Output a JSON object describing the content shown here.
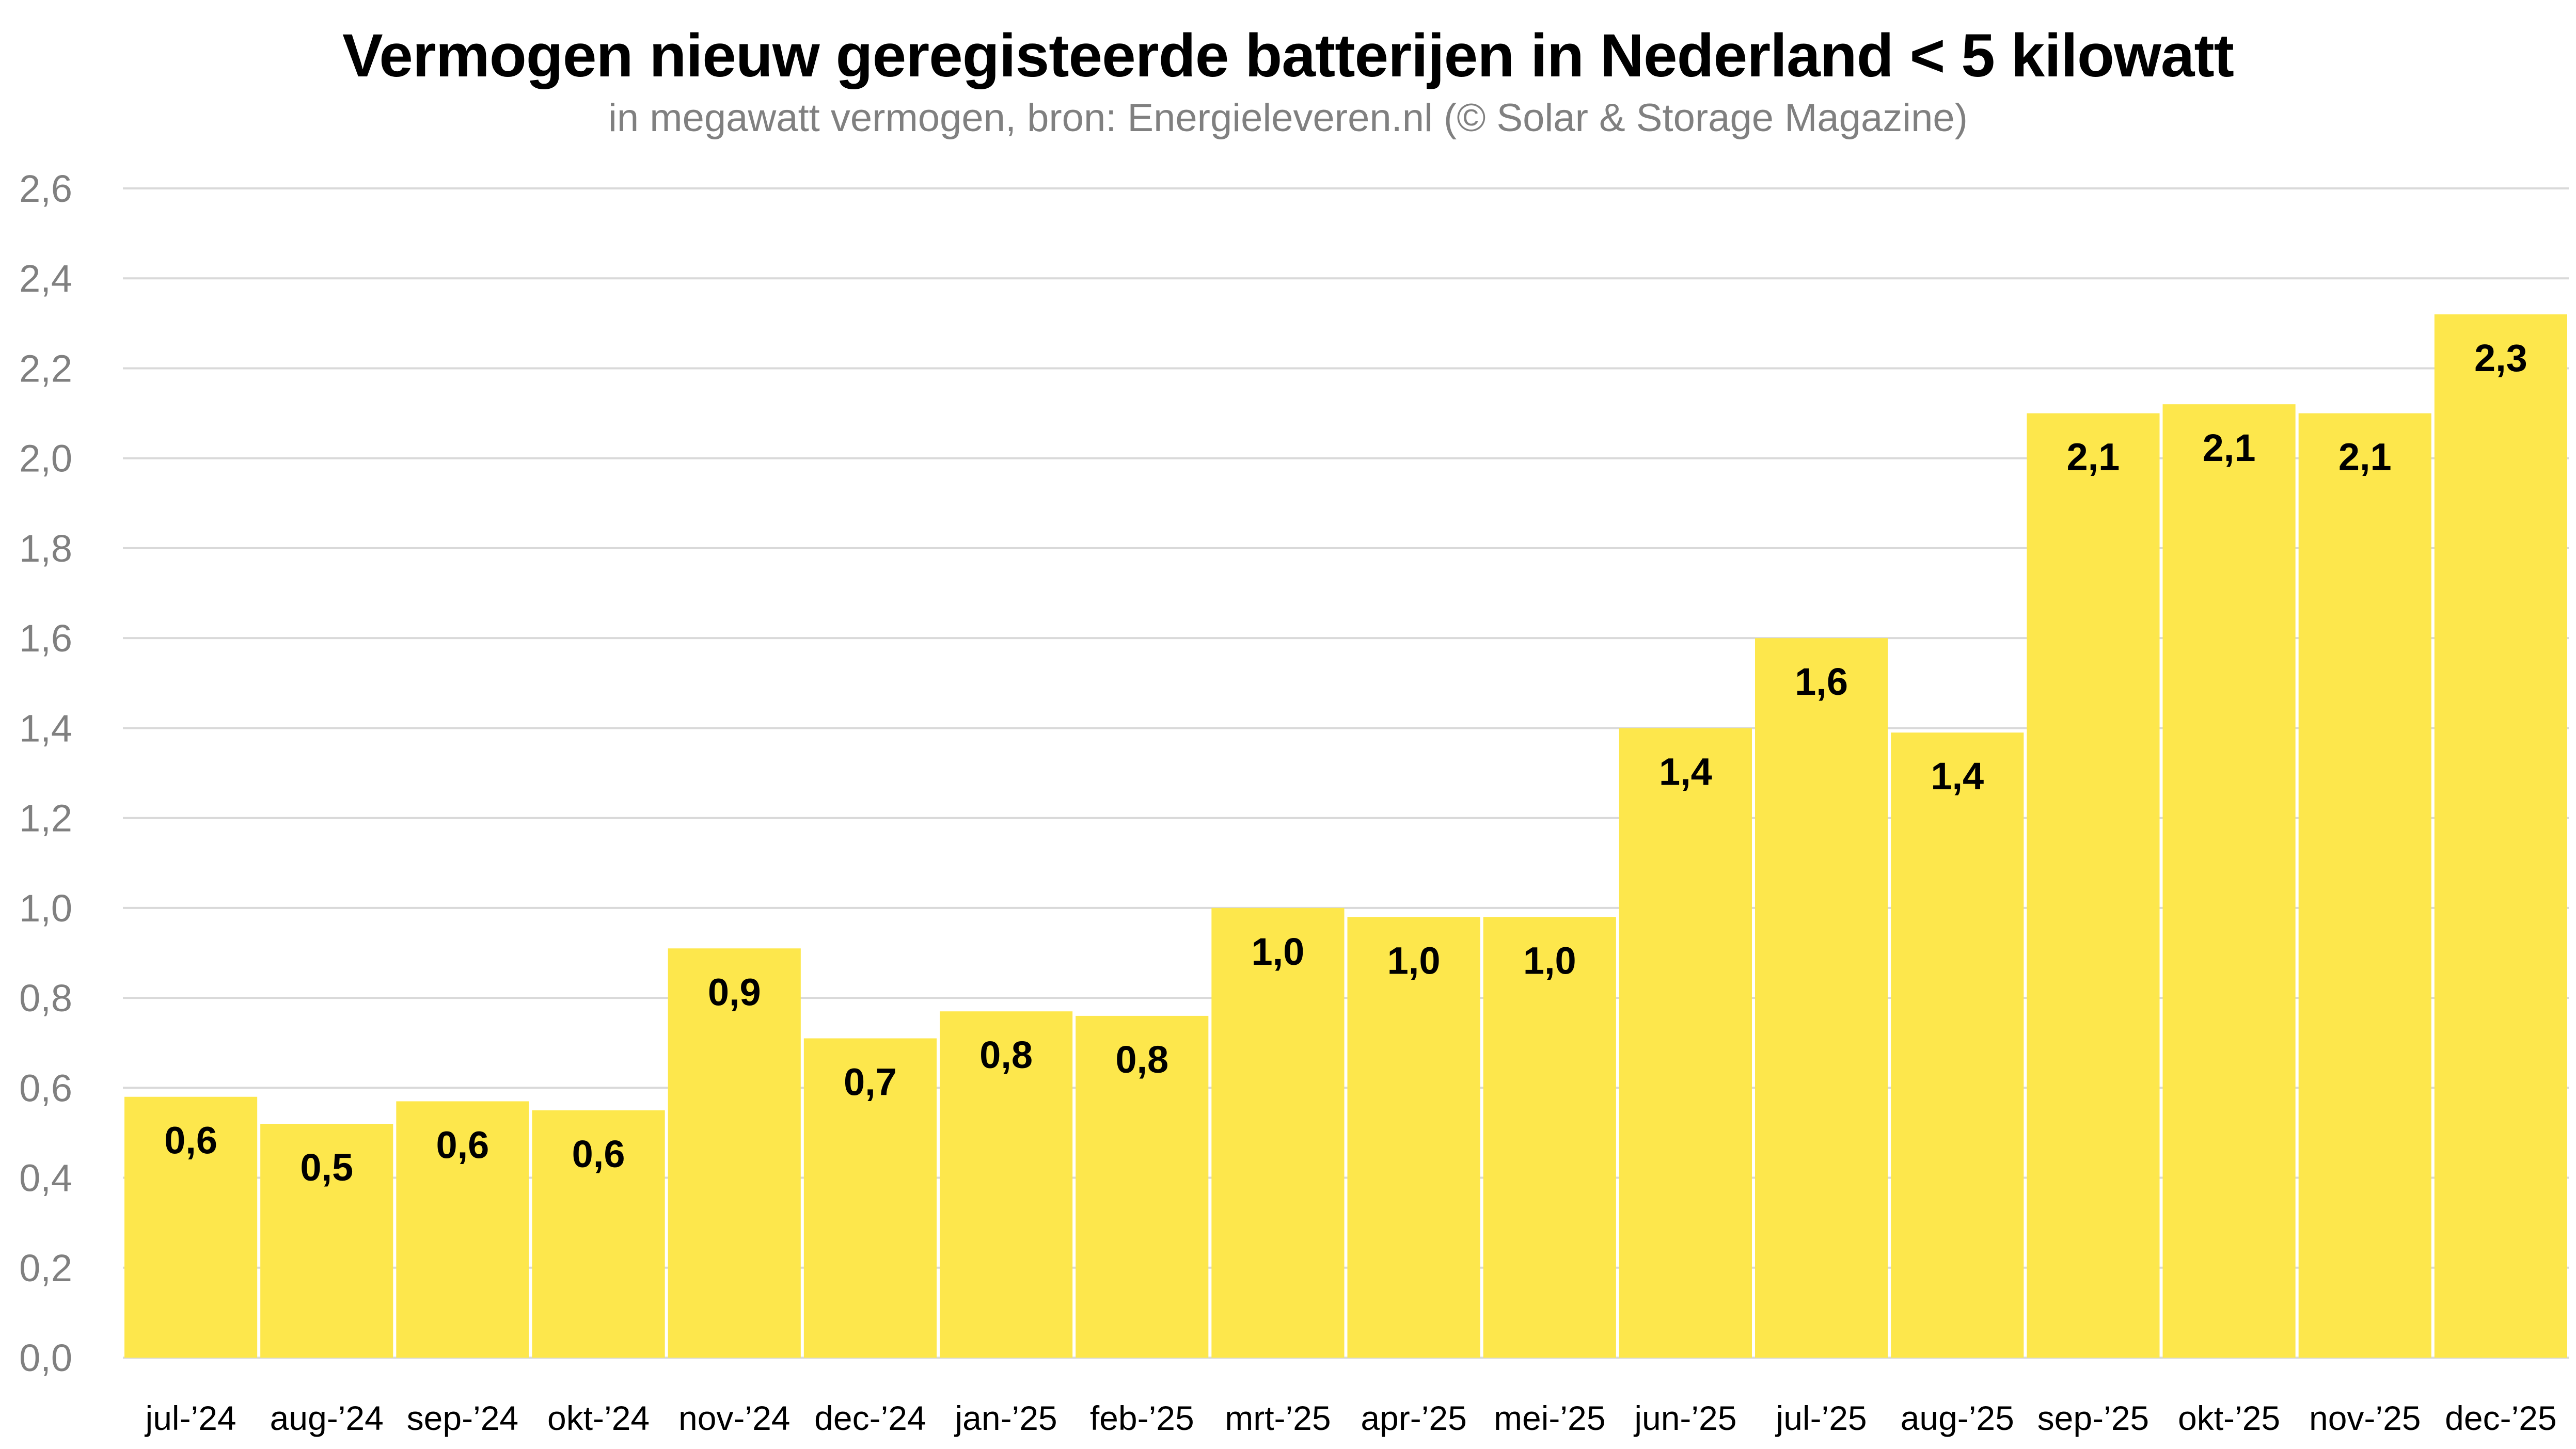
{
  "chart_data": {
    "type": "bar",
    "title": "Vermogen nieuw geregisteerde batterijen in Nederland < 5 kilowatt",
    "subtitle": "in megawatt vermogen, bron: Energieleveren.nl (© Solar & Storage Magazine)",
    "xlabel": "",
    "ylabel": "",
    "ylim": [
      0,
      2.6
    ],
    "yticks": [
      0,
      0.2,
      0.4,
      0.6,
      0.8,
      1.0,
      1.2,
      1.4,
      1.6,
      1.8,
      2.0,
      2.2,
      2.4,
      2.6
    ],
    "ytick_labels": [
      "0,0",
      "0,2",
      "0,4",
      "0,6",
      "0,8",
      "1,0",
      "1,2",
      "1,4",
      "1,6",
      "1,8",
      "2,0",
      "2,2",
      "2,4",
      "2,6"
    ],
    "grid": true,
    "legend": "none",
    "categories": [
      "jul-’24",
      "aug-’24",
      "sep-’24",
      "okt-’24",
      "nov-’24",
      "dec-’24",
      "jan-’25",
      "feb-’25",
      "mrt-’25",
      "apr-’25",
      "mei-’25",
      "jun-’25",
      "jul-’25",
      "aug-’25",
      "sep-’25",
      "okt-’25",
      "nov-’25",
      "dec-’25"
    ],
    "values": [
      0.58,
      0.52,
      0.57,
      0.55,
      0.91,
      0.71,
      0.77,
      0.76,
      1.0,
      0.98,
      0.98,
      1.4,
      1.6,
      1.39,
      2.1,
      2.12,
      2.1,
      2.32
    ],
    "data_labels": [
      "0,6",
      "0,5",
      "0,6",
      "0,6",
      "0,9",
      "0,7",
      "0,8",
      "0,8",
      "1,0",
      "1,0",
      "1,0",
      "1,4",
      "1,6",
      "1,4",
      "2,1",
      "2,1",
      "2,1",
      "2,3"
    ],
    "colors": {
      "bar": "#FDE74C",
      "grid": "#D9D9D9",
      "axis_text": "#808080"
    }
  }
}
